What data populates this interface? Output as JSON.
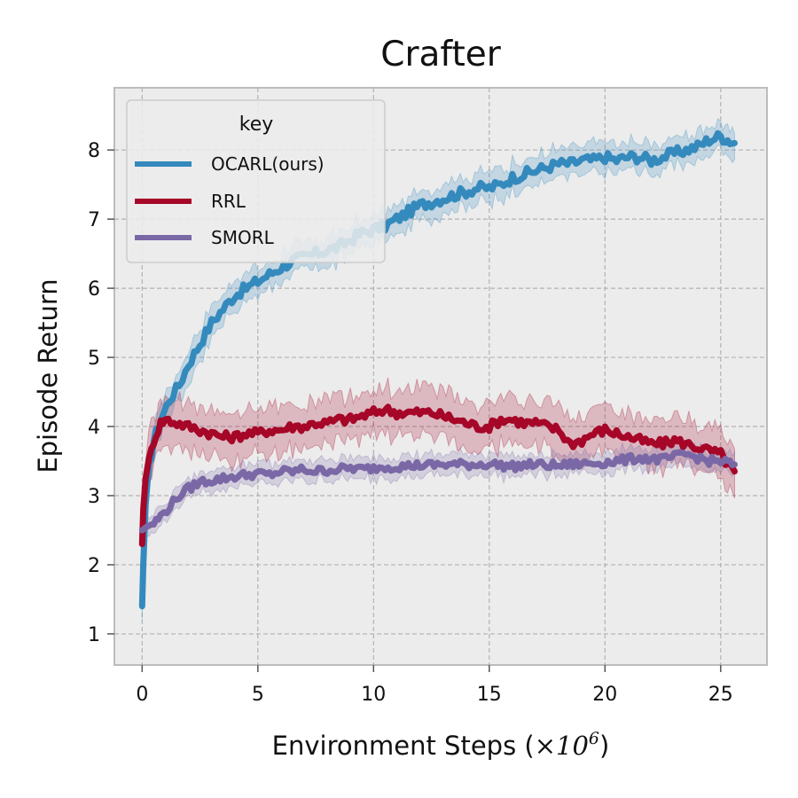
{
  "chart_data": {
    "type": "line",
    "title": "Crafter",
    "xlabel": "Environment Steps (",
    "xlabel_math": "×10",
    "xlabel_exp": "6",
    "xlabel_end": ")",
    "ylabel": "Episode Return",
    "xlim": [
      -1.2,
      27
    ],
    "ylim": [
      0.55,
      8.9
    ],
    "xticks": [
      0,
      5,
      10,
      15,
      20,
      25
    ],
    "yticks": [
      1,
      2,
      3,
      4,
      5,
      6,
      7,
      8
    ],
    "grid": true,
    "legend": {
      "title": "key",
      "placement": "top-left"
    },
    "series": [
      {
        "name": "OCARL(ours)",
        "color": "#348ABD",
        "points": [
          [
            0,
            1.4
          ],
          [
            0.05,
            2.0
          ],
          [
            0.15,
            2.8
          ],
          [
            0.3,
            3.4
          ],
          [
            0.5,
            3.8
          ],
          [
            0.8,
            4.1
          ],
          [
            1.2,
            4.4
          ],
          [
            1.6,
            4.6
          ],
          [
            2.0,
            4.9
          ],
          [
            2.5,
            5.2
          ],
          [
            3.0,
            5.5
          ],
          [
            3.5,
            5.7
          ],
          [
            4.0,
            5.9
          ],
          [
            4.5,
            6.0
          ],
          [
            5.0,
            6.1
          ],
          [
            5.5,
            6.2
          ],
          [
            6.0,
            6.3
          ],
          [
            6.5,
            6.4
          ],
          [
            7.0,
            6.45
          ],
          [
            7.5,
            6.5
          ],
          [
            8.0,
            6.55
          ],
          [
            8.5,
            6.6
          ],
          [
            9.0,
            6.7
          ],
          [
            9.5,
            6.8
          ],
          [
            10.0,
            6.85
          ],
          [
            10.5,
            6.9
          ],
          [
            11.0,
            7.0
          ],
          [
            11.5,
            7.1
          ],
          [
            12.0,
            7.2
          ],
          [
            12.5,
            7.25
          ],
          [
            13.0,
            7.3
          ],
          [
            13.5,
            7.35
          ],
          [
            14.0,
            7.4
          ],
          [
            14.5,
            7.45
          ],
          [
            15.0,
            7.45
          ],
          [
            15.5,
            7.5
          ],
          [
            16.0,
            7.6
          ],
          [
            16.5,
            7.65
          ],
          [
            17.0,
            7.7
          ],
          [
            17.5,
            7.75
          ],
          [
            18.0,
            7.8
          ],
          [
            18.5,
            7.8
          ],
          [
            19.0,
            7.85
          ],
          [
            19.5,
            7.85
          ],
          [
            20.0,
            7.9
          ],
          [
            20.5,
            7.85
          ],
          [
            21.0,
            7.9
          ],
          [
            21.5,
            7.9
          ],
          [
            22.0,
            7.85
          ],
          [
            22.5,
            7.9
          ],
          [
            23.0,
            7.95
          ],
          [
            23.5,
            8.0
          ],
          [
            24.0,
            8.05
          ],
          [
            24.5,
            8.15
          ],
          [
            25.0,
            8.2
          ],
          [
            25.3,
            8.15
          ],
          [
            25.6,
            8.1
          ]
        ],
        "band": 0.22
      },
      {
        "name": "RRL",
        "color": "#A60628",
        "points": [
          [
            0,
            2.3
          ],
          [
            0.05,
            2.8
          ],
          [
            0.15,
            3.3
          ],
          [
            0.3,
            3.5
          ],
          [
            0.5,
            3.8
          ],
          [
            0.8,
            4.05
          ],
          [
            1.0,
            4.1
          ],
          [
            1.5,
            4.05
          ],
          [
            2.0,
            4.0
          ],
          [
            2.5,
            3.95
          ],
          [
            3.0,
            3.9
          ],
          [
            3.5,
            3.85
          ],
          [
            4.0,
            3.85
          ],
          [
            4.5,
            3.9
          ],
          [
            5.0,
            3.9
          ],
          [
            5.5,
            3.95
          ],
          [
            6.0,
            3.95
          ],
          [
            6.5,
            4.0
          ],
          [
            7.0,
            4.0
          ],
          [
            7.5,
            4.05
          ],
          [
            8.0,
            4.05
          ],
          [
            8.5,
            4.1
          ],
          [
            9.0,
            4.1
          ],
          [
            9.5,
            4.15
          ],
          [
            10.0,
            4.2
          ],
          [
            10.5,
            4.25
          ],
          [
            11.0,
            4.2
          ],
          [
            11.5,
            4.2
          ],
          [
            12.0,
            4.2
          ],
          [
            12.5,
            4.2
          ],
          [
            13.0,
            4.15
          ],
          [
            13.5,
            4.1
          ],
          [
            14.0,
            4.05
          ],
          [
            14.5,
            4.0
          ],
          [
            15.0,
            4.0
          ],
          [
            15.5,
            4.1
          ],
          [
            16.0,
            4.1
          ],
          [
            16.5,
            4.05
          ],
          [
            17.0,
            4.05
          ],
          [
            17.5,
            4.0
          ],
          [
            18.0,
            3.95
          ],
          [
            18.5,
            3.75
          ],
          [
            19.0,
            3.8
          ],
          [
            19.5,
            3.9
          ],
          [
            20.0,
            3.95
          ],
          [
            20.5,
            3.9
          ],
          [
            21.0,
            3.85
          ],
          [
            21.5,
            3.8
          ],
          [
            22.0,
            3.75
          ],
          [
            22.5,
            3.75
          ],
          [
            23.0,
            3.8
          ],
          [
            23.5,
            3.75
          ],
          [
            24.0,
            3.7
          ],
          [
            24.5,
            3.65
          ],
          [
            25.0,
            3.6
          ],
          [
            25.3,
            3.45
          ],
          [
            25.6,
            3.35
          ]
        ],
        "band": 0.35
      },
      {
        "name": "SMORL",
        "color": "#7A68A6",
        "points": [
          [
            0,
            2.5
          ],
          [
            0.2,
            2.55
          ],
          [
            0.5,
            2.6
          ],
          [
            0.8,
            2.7
          ],
          [
            1.2,
            2.85
          ],
          [
            1.6,
            3.0
          ],
          [
            2.0,
            3.1
          ],
          [
            2.5,
            3.2
          ],
          [
            3.0,
            3.22
          ],
          [
            3.5,
            3.25
          ],
          [
            4.0,
            3.28
          ],
          [
            4.5,
            3.3
          ],
          [
            5.0,
            3.32
          ],
          [
            5.5,
            3.3
          ],
          [
            6.0,
            3.35
          ],
          [
            6.5,
            3.35
          ],
          [
            7.0,
            3.38
          ],
          [
            7.5,
            3.35
          ],
          [
            8.0,
            3.37
          ],
          [
            8.5,
            3.38
          ],
          [
            9.0,
            3.4
          ],
          [
            9.5,
            3.38
          ],
          [
            10.0,
            3.4
          ],
          [
            10.5,
            3.42
          ],
          [
            11.0,
            3.42
          ],
          [
            11.5,
            3.43
          ],
          [
            12.0,
            3.44
          ],
          [
            12.5,
            3.44
          ],
          [
            13.0,
            3.45
          ],
          [
            13.5,
            3.45
          ],
          [
            14.0,
            3.45
          ],
          [
            14.5,
            3.45
          ],
          [
            15.0,
            3.46
          ],
          [
            15.5,
            3.44
          ],
          [
            16.0,
            3.42
          ],
          [
            16.5,
            3.44
          ],
          [
            17.0,
            3.45
          ],
          [
            17.5,
            3.44
          ],
          [
            18.0,
            3.43
          ],
          [
            18.5,
            3.45
          ],
          [
            19.0,
            3.46
          ],
          [
            19.5,
            3.47
          ],
          [
            20.0,
            3.48
          ],
          [
            20.5,
            3.5
          ],
          [
            21.0,
            3.52
          ],
          [
            21.5,
            3.55
          ],
          [
            22.0,
            3.53
          ],
          [
            22.5,
            3.52
          ],
          [
            23.0,
            3.56
          ],
          [
            23.5,
            3.6
          ],
          [
            24.0,
            3.55
          ],
          [
            24.5,
            3.5
          ],
          [
            25.0,
            3.5
          ],
          [
            25.3,
            3.48
          ],
          [
            25.6,
            3.45
          ]
        ],
        "band": 0.15
      }
    ]
  }
}
